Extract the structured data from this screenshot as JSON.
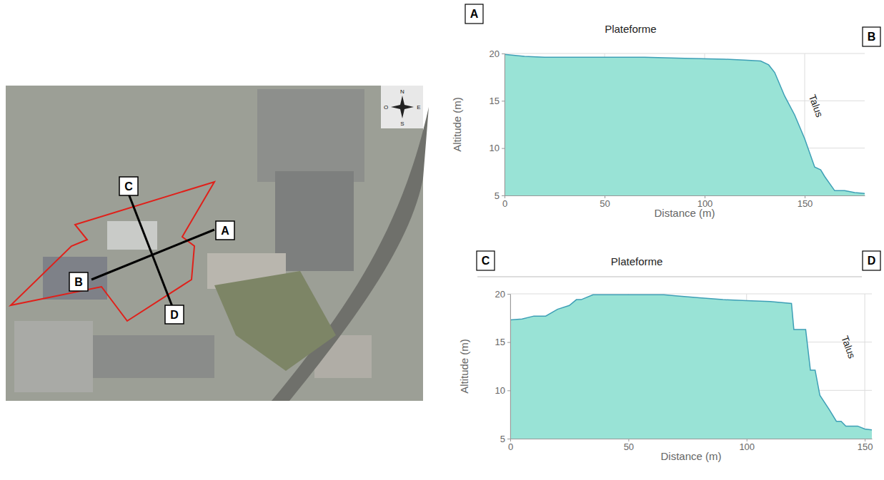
{
  "map": {
    "section_labels": [
      "A",
      "B",
      "C",
      "D"
    ],
    "compass": [
      "N",
      "O",
      "E",
      "S"
    ]
  },
  "chart_data": [
    {
      "type": "area",
      "title": "Plateforme",
      "panel_labels": [
        "A",
        "B"
      ],
      "x_label": "Distance (m)",
      "y_label": "Altitude (m)",
      "x": [
        0,
        10,
        20,
        30,
        50,
        70,
        90,
        110,
        120,
        128,
        132,
        135,
        140,
        145,
        150,
        155,
        158,
        160,
        165,
        170,
        175,
        180
      ],
      "values": [
        19.9,
        19.7,
        19.6,
        19.6,
        19.6,
        19.6,
        19.5,
        19.4,
        19.3,
        19.2,
        18.8,
        18.0,
        15.5,
        13.5,
        11.0,
        8.0,
        7.7,
        7.0,
        5.5,
        5.5,
        5.3,
        5.2
      ],
      "color": "#99e3d6",
      "grid": true,
      "xlim": [
        0,
        180
      ],
      "xticks": [
        0,
        50,
        100,
        150
      ],
      "ylim": [
        5,
        20
      ],
      "yticks": [
        5,
        10,
        15,
        20
      ],
      "annotations": [
        {
          "text": "Talus",
          "x": 152,
          "y": 15.5
        }
      ]
    },
    {
      "type": "area",
      "title": "Plateforme",
      "panel_labels": [
        "C",
        "D"
      ],
      "x_label": "Distance (m)",
      "y_label": "Altitude (m)",
      "x": [
        0,
        5,
        10,
        15,
        20,
        25,
        28,
        30,
        35,
        50,
        65,
        70,
        80,
        90,
        100,
        110,
        119,
        120,
        125,
        127,
        129,
        131,
        135,
        138,
        140,
        142,
        147,
        150,
        153
      ],
      "values": [
        17.3,
        17.4,
        17.7,
        17.7,
        18.4,
        18.8,
        19.4,
        19.4,
        19.9,
        19.9,
        19.9,
        19.8,
        19.6,
        19.4,
        19.3,
        19.2,
        19.0,
        16.3,
        16.3,
        12.1,
        12.1,
        9.5,
        8.0,
        6.8,
        6.8,
        6.3,
        6.3,
        6.0,
        5.9
      ],
      "color": "#99e3d6",
      "grid": true,
      "xlim": [
        0,
        153
      ],
      "xticks": [
        0,
        50,
        100,
        150
      ],
      "ylim": [
        5,
        20
      ],
      "yticks": [
        5,
        10,
        15,
        20
      ],
      "annotations": [
        {
          "text": "Talus",
          "x": 140,
          "y": 15.5
        }
      ]
    }
  ]
}
